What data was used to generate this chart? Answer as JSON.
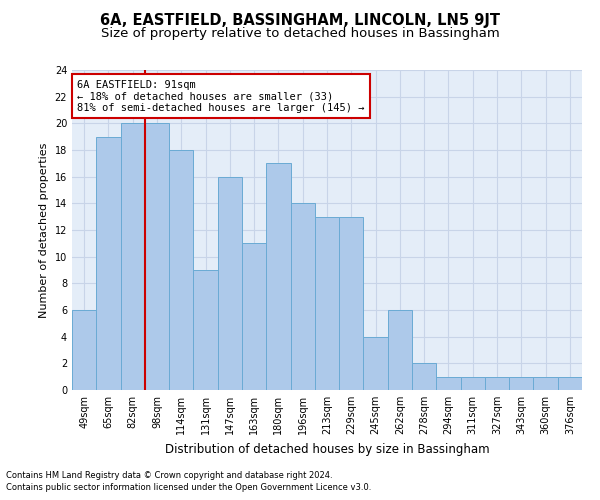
{
  "title": "6A, EASTFIELD, BASSINGHAM, LINCOLN, LN5 9JT",
  "subtitle": "Size of property relative to detached houses in Bassingham",
  "xlabel": "Distribution of detached houses by size in Bassingham",
  "ylabel": "Number of detached properties",
  "categories": [
    "49sqm",
    "65sqm",
    "82sqm",
    "98sqm",
    "114sqm",
    "131sqm",
    "147sqm",
    "163sqm",
    "180sqm",
    "196sqm",
    "213sqm",
    "229sqm",
    "245sqm",
    "262sqm",
    "278sqm",
    "294sqm",
    "311sqm",
    "327sqm",
    "343sqm",
    "360sqm",
    "376sqm"
  ],
  "values": [
    6,
    19,
    20,
    20,
    18,
    9,
    16,
    11,
    17,
    14,
    13,
    13,
    4,
    6,
    2,
    1,
    1,
    1,
    1,
    1,
    1
  ],
  "bar_color": "#adc9ea",
  "bar_edge_color": "#6aaad4",
  "red_line_index": 2,
  "red_line_color": "#cc0000",
  "annotation_box_text": "6A EASTFIELD: 91sqm\n← 18% of detached houses are smaller (33)\n81% of semi-detached houses are larger (145) →",
  "annotation_box_edge_color": "#cc0000",
  "ylim": [
    0,
    24
  ],
  "yticks": [
    0,
    2,
    4,
    6,
    8,
    10,
    12,
    14,
    16,
    18,
    20,
    22,
    24
  ],
  "grid_color": "#c8d4e8",
  "background_color": "#e4edf8",
  "footnote1": "Contains HM Land Registry data © Crown copyright and database right 2024.",
  "footnote2": "Contains public sector information licensed under the Open Government Licence v3.0.",
  "title_fontsize": 10.5,
  "subtitle_fontsize": 9.5,
  "xlabel_fontsize": 8.5,
  "ylabel_fontsize": 8,
  "tick_fontsize": 7,
  "annotation_fontsize": 7.5,
  "footnote_fontsize": 6
}
